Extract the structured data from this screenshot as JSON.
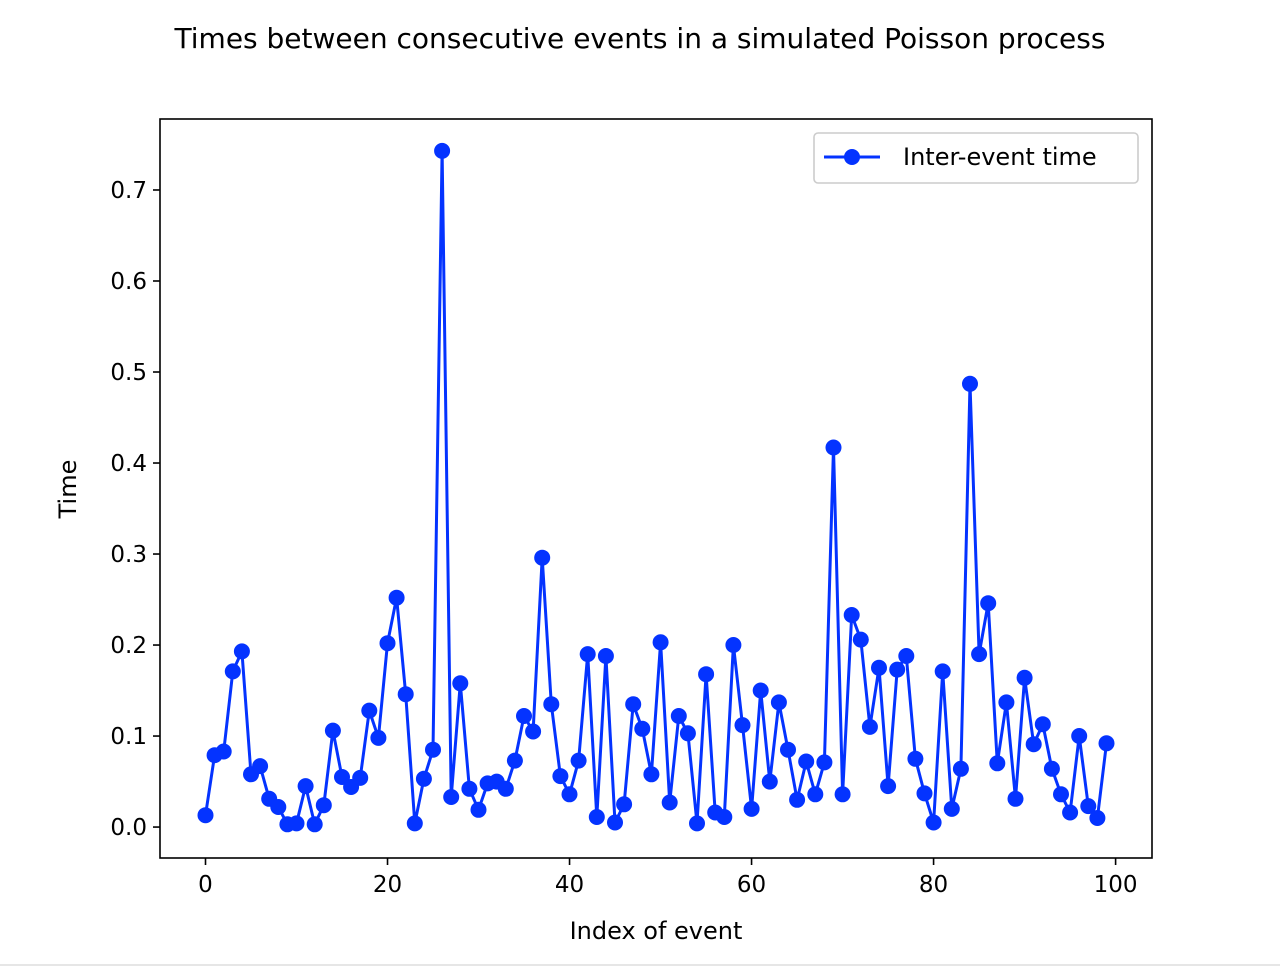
{
  "chart_data": {
    "type": "line",
    "title": "Times between consecutive events in a simulated Poisson process",
    "xlabel": "Index of event",
    "ylabel": "Time",
    "xlim": [
      -5,
      104
    ],
    "ylim": [
      -0.034,
      0.778
    ],
    "xticks": [
      0,
      20,
      40,
      60,
      80,
      100
    ],
    "yticks": [
      0.0,
      0.1,
      0.2,
      0.3,
      0.4,
      0.5,
      0.6,
      0.7
    ],
    "xtick_labels": [
      "0",
      "20",
      "40",
      "60",
      "80",
      "100"
    ],
    "ytick_labels": [
      "0.0",
      "0.1",
      "0.2",
      "0.3",
      "0.4",
      "0.5",
      "0.6",
      "0.7"
    ],
    "grid": false,
    "legend": {
      "placement": "top-right",
      "entries": [
        "Inter-event time"
      ]
    },
    "color": "#0433ff",
    "series": [
      {
        "name": "Inter-event time",
        "marker": "circle",
        "x": [
          0,
          1,
          2,
          3,
          4,
          5,
          6,
          7,
          8,
          9,
          10,
          11,
          12,
          13,
          14,
          15,
          16,
          17,
          18,
          19,
          20,
          21,
          22,
          23,
          24,
          25,
          26,
          27,
          28,
          29,
          30,
          31,
          32,
          33,
          34,
          35,
          36,
          37,
          38,
          39,
          40,
          41,
          42,
          43,
          44,
          45,
          46,
          47,
          48,
          49,
          50,
          51,
          52,
          53,
          54,
          55,
          56,
          57,
          58,
          59,
          60,
          61,
          62,
          63,
          64,
          65,
          66,
          67,
          68,
          69,
          70,
          71,
          72,
          73,
          74,
          75,
          76,
          77,
          78,
          79,
          80,
          81,
          82,
          83,
          84,
          85,
          86,
          87,
          88,
          89,
          90,
          91,
          92,
          93,
          94,
          95,
          96,
          97,
          98,
          99
        ],
        "y": [
          0.013,
          0.079,
          0.083,
          0.171,
          0.193,
          0.058,
          0.067,
          0.031,
          0.022,
          0.003,
          0.004,
          0.045,
          0.003,
          0.024,
          0.106,
          0.055,
          0.044,
          0.054,
          0.128,
          0.098,
          0.202,
          0.252,
          0.146,
          0.004,
          0.053,
          0.085,
          0.743,
          0.033,
          0.158,
          0.042,
          0.019,
          0.048,
          0.05,
          0.042,
          0.073,
          0.122,
          0.105,
          0.296,
          0.135,
          0.056,
          0.036,
          0.073,
          0.19,
          0.011,
          0.188,
          0.005,
          0.025,
          0.135,
          0.108,
          0.058,
          0.203,
          0.027,
          0.122,
          0.103,
          0.004,
          0.168,
          0.016,
          0.011,
          0.2,
          0.112,
          0.02,
          0.15,
          0.05,
          0.137,
          0.085,
          0.03,
          0.072,
          0.036,
          0.071,
          0.417,
          0.036,
          0.233,
          0.206,
          0.11,
          0.175,
          0.045,
          0.173,
          0.188,
          0.075,
          0.037,
          0.005,
          0.171,
          0.02,
          0.064,
          0.487,
          0.19,
          0.246,
          0.07,
          0.137,
          0.031,
          0.164,
          0.091,
          0.113,
          0.064,
          0.036,
          0.016,
          0.1,
          0.023,
          0.01,
          0.092
        ]
      }
    ]
  }
}
